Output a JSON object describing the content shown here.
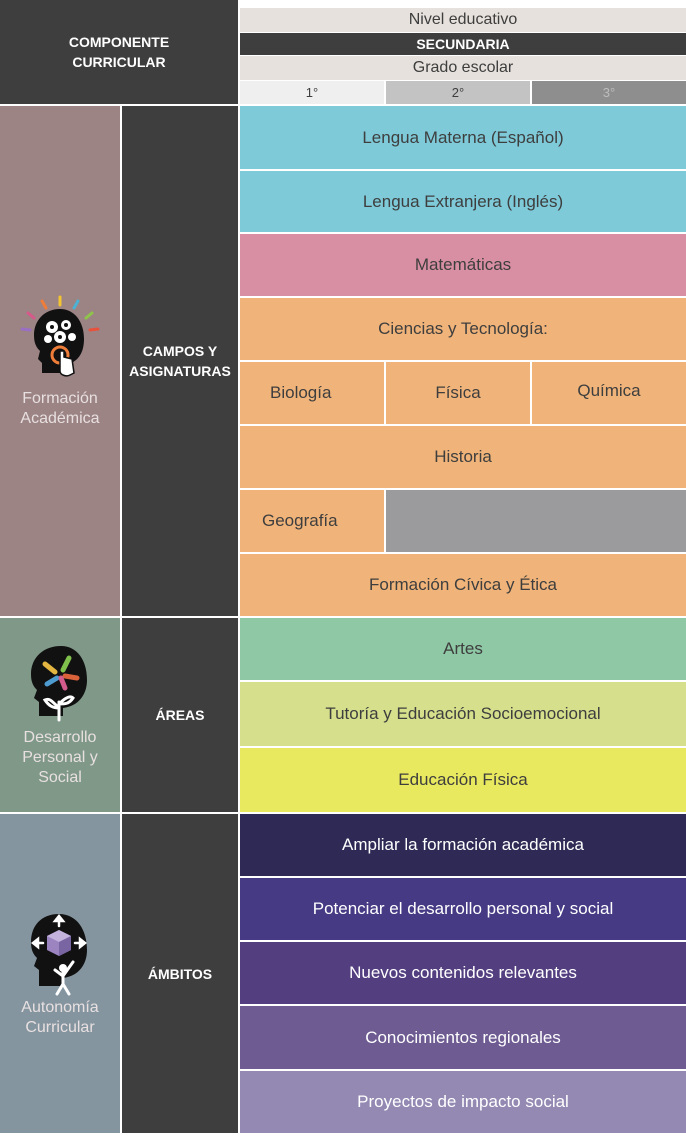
{
  "header": {
    "componente": "COMPONENTE\nCURRICULAR",
    "nivel_label": "Nivel educativo",
    "nivel_value": "SECUNDARIA",
    "grado_label": "Grado escolar",
    "grados": [
      "1°",
      "2°",
      "3°"
    ]
  },
  "sections": {
    "formacion": {
      "label": "Formación\nAcadémica",
      "mid": "CAMPOS Y\nASIGNATURAS",
      "icon": "gears-head-icon",
      "color": "#9c8384"
    },
    "desarrollo": {
      "label": "Desarrollo\nPersonal y\nSocial",
      "mid": "ÁREAS",
      "icon": "hands-plant-head-icon",
      "color": "#7f9888"
    },
    "autonomia": {
      "label": "Autonomía\nCurricular",
      "mid": "ÁMBITOS",
      "icon": "cube-head-icon",
      "color": "#8595a0"
    }
  },
  "rows": {
    "lengua_materna": "Lengua Materna (Español)",
    "lengua_extranjera": "Lengua Extranjera (Inglés)",
    "matematicas": "Matemáticas",
    "ciencias": "Ciencias y Tecnología:",
    "biologia": "Biología",
    "fisica": "Física",
    "quimica": "Química",
    "historia": "Historia",
    "geografia": "Geografía",
    "civica": "Formación Cívica y Ética",
    "artes": "Artes",
    "tutoria": "Tutoría y Educación Socioemocional",
    "ed_fisica": "Educación Física",
    "ampliar": "Ampliar la formación académica",
    "potenciar": "Potenciar el desarrollo personal y social",
    "nuevos": "Nuevos contenidos relevantes",
    "conocimientos": "Conocimientos regionales",
    "proyectos": "Proyectos de impacto social"
  },
  "colors": {
    "lengua": "#7ecad9",
    "matematicas": "#d98fa3",
    "ciencias": "#f0b47a",
    "gray": "#9b9b9e",
    "artes": "#8fc8a5",
    "tutoria": "#d5df8c",
    "ed_fisica": "#e9e95f",
    "ampliar": "#2e2a55",
    "potenciar": "#473a85",
    "nuevos": "#533f80",
    "conocimientos": "#6d5b92",
    "proyectos": "#9489b3"
  }
}
